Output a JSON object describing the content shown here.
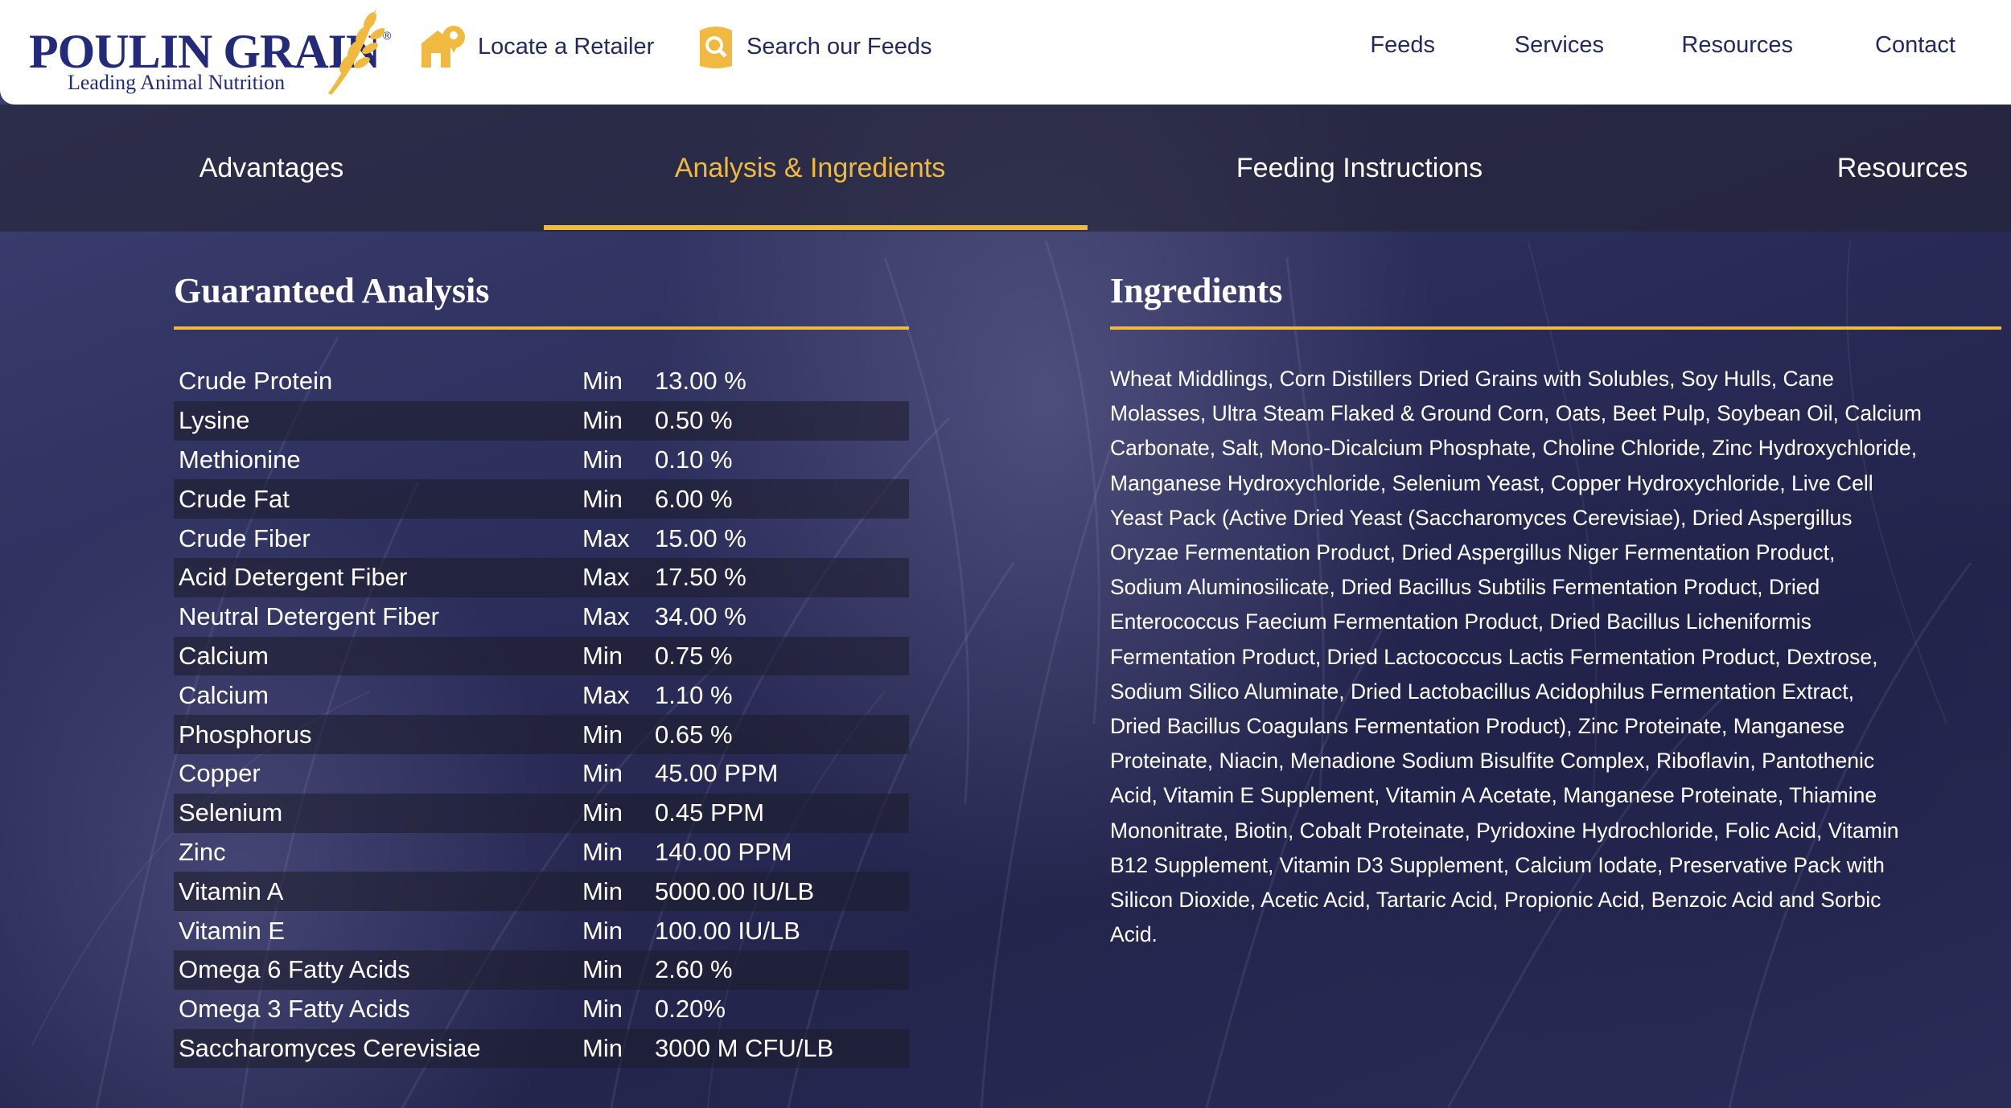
{
  "header": {
    "logo": {
      "name": "POULIN GRAIN",
      "registered": "®",
      "tagline": "Leading Animal Nutrition"
    },
    "utility_links": [
      {
        "label": "Locate a Retailer",
        "icon": "store-pin-icon"
      },
      {
        "label": "Search our Feeds",
        "icon": "search-icon"
      }
    ],
    "nav": [
      "Feeds",
      "Services",
      "Resources",
      "Contact"
    ]
  },
  "tabs": {
    "items": [
      "Advantages",
      "Analysis & Ingredients",
      "Feeding Instructions",
      "Resources"
    ],
    "active": "Analysis & Ingredients"
  },
  "analysis": {
    "title": "Guaranteed Analysis",
    "rows": [
      {
        "nutrient": "Crude Protein",
        "basis": "Min",
        "amount": "13.00 %"
      },
      {
        "nutrient": "Lysine",
        "basis": "Min",
        "amount": "0.50 %"
      },
      {
        "nutrient": "Methionine",
        "basis": "Min",
        "amount": "0.10 %"
      },
      {
        "nutrient": "Crude Fat",
        "basis": "Min",
        "amount": "6.00 %"
      },
      {
        "nutrient": "Crude Fiber",
        "basis": "Max",
        "amount": "15.00 %"
      },
      {
        "nutrient": "Acid Detergent Fiber",
        "basis": "Max",
        "amount": "17.50 %"
      },
      {
        "nutrient": "Neutral Detergent Fiber",
        "basis": "Max",
        "amount": "34.00 %"
      },
      {
        "nutrient": "Calcium",
        "basis": "Min",
        "amount": "0.75 %"
      },
      {
        "nutrient": "Calcium",
        "basis": "Max",
        "amount": "1.10 %"
      },
      {
        "nutrient": "Phosphorus",
        "basis": "Min",
        "amount": "0.65 %"
      },
      {
        "nutrient": "Copper",
        "basis": "Min",
        "amount": "45.00 PPM"
      },
      {
        "nutrient": "Selenium",
        "basis": "Min",
        "amount": "0.45 PPM"
      },
      {
        "nutrient": "Zinc",
        "basis": "Min",
        "amount": "140.00 PPM"
      },
      {
        "nutrient": "Vitamin A",
        "basis": "Min",
        "amount": "5000.00 IU/LB"
      },
      {
        "nutrient": "Vitamin E",
        "basis": "Min",
        "amount": "100.00 IU/LB"
      },
      {
        "nutrient": "Omega 6 Fatty Acids",
        "basis": "Min",
        "amount": "2.60 %"
      },
      {
        "nutrient": "Omega 3 Fatty Acids",
        "basis": "Min",
        "amount": "0.20%"
      },
      {
        "nutrient": "Saccharomyces Cerevisiae",
        "basis": "Min",
        "amount": "3000 M CFU/LB"
      }
    ]
  },
  "ingredients": {
    "title": "Ingredients",
    "lines": [
      "Wheat Middlings, Corn Distillers Dried Grains with Solubles, Soy Hulls, Cane",
      "Molasses, Ultra Steam Flaked & Ground Corn, Oats, Beet Pulp, Soybean Oil, Calcium",
      "Carbonate, Salt, Mono-Dicalcium Phosphate, Choline Chloride, Zinc Hydroxychloride,",
      "Manganese Hydroxychloride, Selenium Yeast, Copper Hydroxychloride, Live Cell",
      "Yeast Pack (Active Dried Yeast (Saccharomyces Cerevisiae), Dried Aspergillus",
      "Oryzae Fermentation Product, Dried Aspergillus Niger Fermentation Product,",
      "Sodium Aluminosilicate, Dried Bacillus Subtilis Fermentation Product, Dried",
      "Enterococcus Faecium Fermentation Product, Dried Bacillus Licheniformis",
      "Fermentation Product, Dried Lactococcus Lactis Fermentation Product, Dextrose,",
      "Sodium Silico Aluminate, Dried Lactobacillus Acidophilus Fermentation Extract,",
      "Dried Bacillus Coagulans Fermentation Product), Zinc Proteinate, Manganese",
      "Proteinate, Niacin, Menadione Sodium Bisulfite Complex, Riboflavin, Pantothenic",
      "Acid, Vitamin E Supplement, Vitamin A Acetate, Manganese Proteinate, Thiamine",
      "Mononitrate, Biotin, Cobalt Proteinate, Pyridoxine Hydrochloride, Folic Acid, Vitamin",
      "B12 Supplement, Vitamin D3 Supplement, Calcium Iodate, Preservative Pack with",
      "Silicon Dioxide, Acetic Acid, Tartaric Acid, Propionic Acid, Benzoic Acid and Sorbic",
      "Acid."
    ]
  },
  "colors": {
    "accent": "#f0b93f",
    "brand_navy": "#232a7a",
    "nav_text": "#232a60"
  }
}
